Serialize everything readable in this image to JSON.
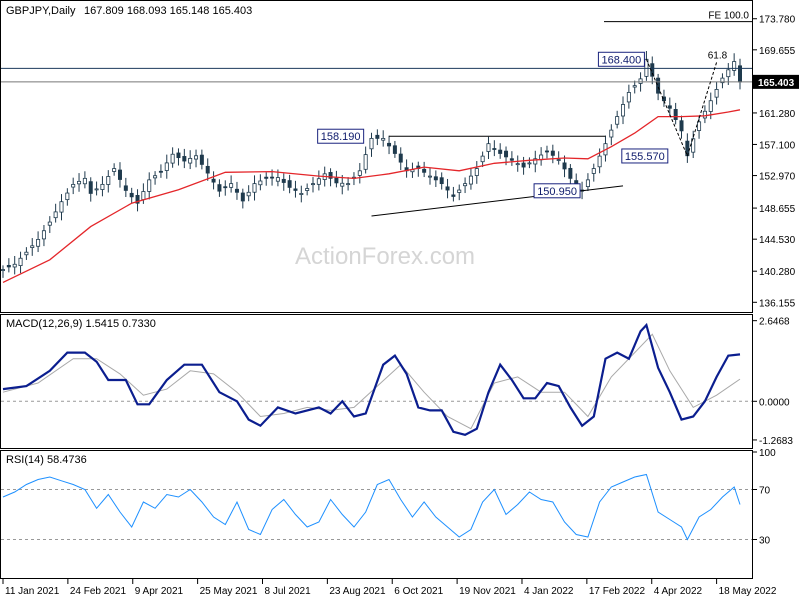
{
  "header": {
    "symbol_label": "GBPJPY,Daily",
    "ohlc_label": "167.809 168.093 165.148 165.403"
  },
  "watermark": "ActionForex.com",
  "colors": {
    "candle": "#1f3a4d",
    "ma": "#e4262a",
    "macd_main": "#0b1e8f",
    "macd_signal": "#a9a9a9",
    "rsi": "#1e90ff",
    "grid": "#000000",
    "label_border": "#1a237e"
  },
  "chart_data": [
    {
      "name": "price",
      "type": "line",
      "title": "GBPJPY,Daily",
      "ylim": [
        135.0,
        176.0
      ],
      "y_ticks": [
        {
          "value": 173.78,
          "label": "173.780"
        },
        {
          "value": 169.655,
          "label": "169.655"
        },
        {
          "value": 165.4,
          "label": "165.403"
        },
        {
          "value": 161.28,
          "label": "161.280"
        },
        {
          "value": 157.1,
          "label": "157.100"
        },
        {
          "value": 152.97,
          "label": "152.970"
        },
        {
          "value": 148.655,
          "label": "148.655"
        },
        {
          "value": 144.53,
          "label": "144.530"
        },
        {
          "value": 140.28,
          "label": "140.280"
        },
        {
          "value": 136.155,
          "label": "136.155"
        }
      ],
      "current_price": {
        "value": 165.403,
        "label": "165.403"
      },
      "x_labels": [
        "11 Jan 2021",
        "24 Feb 2021",
        "9 Apr 2021",
        "25 May 2021",
        "8 Jul 2021",
        "23 Aug 2021",
        "6 Oct 2021",
        "19 Nov 2021",
        "4 Jan 2022",
        "17 Feb 2022",
        "4 Apr 2022",
        "18 May 2022"
      ],
      "close_path": [
        [
          0,
          140.5
        ],
        [
          2,
          141.2
        ],
        [
          4,
          142.8
        ],
        [
          6,
          144.5
        ],
        [
          8,
          146.8
        ],
        [
          10,
          149.5
        ],
        [
          12,
          151.8
        ],
        [
          14,
          152.6
        ],
        [
          15,
          150.6
        ],
        [
          17,
          151.8
        ],
        [
          19,
          153.9
        ],
        [
          21,
          151.0
        ],
        [
          23,
          149.3
        ],
        [
          25,
          152.4
        ],
        [
          27,
          153.5
        ],
        [
          29,
          155.8
        ],
        [
          31,
          154.9
        ],
        [
          33,
          155.6
        ],
        [
          35,
          153.3
        ],
        [
          37,
          150.9
        ],
        [
          39,
          151.9
        ],
        [
          41,
          149.6
        ],
        [
          43,
          151.9
        ],
        [
          45,
          152.6
        ],
        [
          47,
          152.7
        ],
        [
          49,
          151.4
        ],
        [
          51,
          150.6
        ],
        [
          53,
          151.9
        ],
        [
          55,
          153.2
        ],
        [
          57,
          152.0
        ],
        [
          59,
          151.9
        ],
        [
          61,
          153.6
        ],
        [
          63,
          157.9
        ],
        [
          65,
          157.9
        ],
        [
          67,
          155.9
        ],
        [
          69,
          153.6
        ],
        [
          71,
          153.9
        ],
        [
          73,
          152.9
        ],
        [
          75,
          151.9
        ],
        [
          77,
          150.2
        ],
        [
          79,
          151.9
        ],
        [
          81,
          153.9
        ],
        [
          83,
          157.2
        ],
        [
          85,
          155.9
        ],
        [
          87,
          155.0
        ],
        [
          89,
          154.1
        ],
        [
          91,
          155.2
        ],
        [
          93,
          156.2
        ],
        [
          95,
          155.1
        ],
        [
          97,
          152.6
        ],
        [
          99,
          150.9
        ],
        [
          101,
          153.9
        ],
        [
          103,
          157.2
        ],
        [
          105,
          160.8
        ],
        [
          107,
          164.0
        ],
        [
          109,
          165.8
        ],
        [
          110,
          168.4
        ],
        [
          112,
          163.9
        ],
        [
          114,
          161.9
        ],
        [
          116,
          158.9
        ],
        [
          117,
          155.6
        ],
        [
          119,
          160.1
        ],
        [
          121,
          162.9
        ],
        [
          123,
          165.9
        ],
        [
          125,
          168.1
        ],
        [
          126,
          165.4
        ]
      ],
      "high_low_spread": 1.1,
      "ma_path": [
        [
          0,
          138.8
        ],
        [
          8,
          141.8
        ],
        [
          15,
          146.2
        ],
        [
          22,
          149.3
        ],
        [
          30,
          151.1
        ],
        [
          38,
          153.4
        ],
        [
          46,
          153.5
        ],
        [
          54,
          152.9
        ],
        [
          60,
          152.6
        ],
        [
          66,
          153.2
        ],
        [
          72,
          154.1
        ],
        [
          78,
          153.6
        ],
        [
          84,
          154.6
        ],
        [
          90,
          155.0
        ],
        [
          96,
          155.3
        ],
        [
          100,
          155.2
        ],
        [
          104,
          156.8
        ],
        [
          108,
          158.6
        ],
        [
          112,
          160.8
        ],
        [
          116,
          160.8
        ],
        [
          120,
          160.9
        ],
        [
          124,
          161.4
        ],
        [
          126,
          161.7
        ]
      ],
      "bars_total": 126,
      "horizontal_lines": [
        {
          "value": 173.4,
          "label": "FE 100.0"
        },
        {
          "value": 167.2,
          "label": ""
        },
        {
          "value": 165.4,
          "label": ""
        }
      ],
      "trendlines": [
        {
          "from": [
            66,
            158.19
          ],
          "to": [
            103,
            158.19
          ]
        },
        {
          "from": [
            63,
            147.6
          ],
          "to": [
            106,
            151.6
          ]
        },
        {
          "from": [
            110,
            168.4
          ],
          "to": [
            117,
            155.57
          ]
        },
        {
          "from": [
            117,
            155.57
          ],
          "to": [
            122,
            168.0
          ]
        }
      ],
      "price_labels": [
        {
          "text": "158.190",
          "x": 62,
          "y": 158.19,
          "anchor": "end"
        },
        {
          "text": "150.950",
          "x": 99,
          "y": 150.95,
          "anchor": "end"
        },
        {
          "text": "168.400",
          "x": 110,
          "y": 168.4,
          "anchor": "end"
        },
        {
          "text": "155.570",
          "x": 114,
          "y": 155.57,
          "anchor": "end"
        }
      ],
      "fib_label": {
        "text": "61.8",
        "x": 121,
        "y": 168.0
      }
    },
    {
      "name": "macd",
      "type": "line",
      "title": "MACD(12,26,9) 1.5415 0.7330",
      "ylim": [
        -1.5,
        2.8
      ],
      "y_ticks": [
        {
          "value": 2.6468,
          "label": "2.6468"
        },
        {
          "value": 0.0,
          "label": "0.0000"
        },
        {
          "value": -1.2683,
          "label": "-1.2683"
        }
      ],
      "main_path": [
        [
          0,
          0.4
        ],
        [
          4,
          0.5
        ],
        [
          8,
          1.0
        ],
        [
          11,
          1.6
        ],
        [
          14,
          1.6
        ],
        [
          16,
          1.3
        ],
        [
          18,
          0.7
        ],
        [
          21,
          0.7
        ],
        [
          23,
          -0.1
        ],
        [
          25,
          -0.1
        ],
        [
          28,
          0.7
        ],
        [
          31,
          1.2
        ],
        [
          34,
          1.2
        ],
        [
          37,
          0.3
        ],
        [
          40,
          0.0
        ],
        [
          42,
          -0.6
        ],
        [
          44,
          -0.8
        ],
        [
          47,
          -0.2
        ],
        [
          50,
          -0.4
        ],
        [
          54,
          -0.2
        ],
        [
          56,
          -0.4
        ],
        [
          58,
          0.0
        ],
        [
          60,
          -0.5
        ],
        [
          62,
          -0.4
        ],
        [
          65,
          1.2
        ],
        [
          67,
          1.5
        ],
        [
          69,
          0.9
        ],
        [
          71,
          -0.2
        ],
        [
          73,
          -0.3
        ],
        [
          75,
          -0.3
        ],
        [
          77,
          -1.0
        ],
        [
          79,
          -1.1
        ],
        [
          81,
          -0.9
        ],
        [
          83,
          0.3
        ],
        [
          85,
          1.2
        ],
        [
          87,
          0.7
        ],
        [
          89,
          0.1
        ],
        [
          91,
          0.1
        ],
        [
          93,
          0.6
        ],
        [
          95,
          0.5
        ],
        [
          97,
          -0.2
        ],
        [
          99,
          -0.8
        ],
        [
          101,
          -0.5
        ],
        [
          103,
          1.4
        ],
        [
          105,
          1.6
        ],
        [
          107,
          1.4
        ],
        [
          109,
          2.3
        ],
        [
          110,
          2.5
        ],
        [
          112,
          1.1
        ],
        [
          114,
          0.3
        ],
        [
          116,
          -0.6
        ],
        [
          118,
          -0.5
        ],
        [
          120,
          0.0
        ],
        [
          122,
          0.8
        ],
        [
          124,
          1.5
        ],
        [
          126,
          1.54
        ]
      ],
      "signal_path": [
        [
          0,
          0.3
        ],
        [
          6,
          0.6
        ],
        [
          12,
          1.4
        ],
        [
          16,
          1.4
        ],
        [
          20,
          0.9
        ],
        [
          24,
          0.2
        ],
        [
          28,
          0.4
        ],
        [
          32,
          1.0
        ],
        [
          36,
          0.9
        ],
        [
          40,
          0.3
        ],
        [
          44,
          -0.5
        ],
        [
          48,
          -0.4
        ],
        [
          52,
          -0.2
        ],
        [
          56,
          -0.3
        ],
        [
          60,
          -0.2
        ],
        [
          64,
          0.5
        ],
        [
          68,
          1.2
        ],
        [
          72,
          0.3
        ],
        [
          76,
          -0.5
        ],
        [
          80,
          -0.9
        ],
        [
          84,
          0.6
        ],
        [
          88,
          0.8
        ],
        [
          92,
          0.3
        ],
        [
          96,
          0.3
        ],
        [
          100,
          -0.5
        ],
        [
          104,
          0.8
        ],
        [
          108,
          1.6
        ],
        [
          111,
          2.2
        ],
        [
          114,
          1.0
        ],
        [
          118,
          -0.2
        ],
        [
          122,
          0.2
        ],
        [
          126,
          0.73
        ]
      ]
    },
    {
      "name": "rsi",
      "type": "line",
      "title": "RSI(14) 58.4736",
      "ylim": [
        0,
        100
      ],
      "y_ticks": [
        {
          "value": 100,
          "label": "100"
        },
        {
          "value": 70,
          "label": "70"
        },
        {
          "value": 30,
          "label": "30"
        }
      ],
      "levels": [
        70,
        30
      ],
      "path": [
        [
          0,
          64
        ],
        [
          2,
          68
        ],
        [
          4,
          74
        ],
        [
          6,
          78
        ],
        [
          8,
          80
        ],
        [
          10,
          77
        ],
        [
          12,
          74
        ],
        [
          14,
          70
        ],
        [
          16,
          55
        ],
        [
          18,
          66
        ],
        [
          20,
          52
        ],
        [
          22,
          40
        ],
        [
          24,
          60
        ],
        [
          26,
          55
        ],
        [
          28,
          66
        ],
        [
          30,
          64
        ],
        [
          32,
          70
        ],
        [
          34,
          60
        ],
        [
          36,
          48
        ],
        [
          38,
          42
        ],
        [
          40,
          60
        ],
        [
          42,
          38
        ],
        [
          44,
          34
        ],
        [
          46,
          54
        ],
        [
          48,
          62
        ],
        [
          50,
          50
        ],
        [
          52,
          40
        ],
        [
          54,
          44
        ],
        [
          56,
          62
        ],
        [
          58,
          50
        ],
        [
          60,
          40
        ],
        [
          62,
          52
        ],
        [
          64,
          74
        ],
        [
          66,
          78
        ],
        [
          68,
          62
        ],
        [
          70,
          48
        ],
        [
          72,
          60
        ],
        [
          74,
          48
        ],
        [
          76,
          40
        ],
        [
          78,
          32
        ],
        [
          80,
          38
        ],
        [
          82,
          60
        ],
        [
          84,
          70
        ],
        [
          86,
          50
        ],
        [
          88,
          58
        ],
        [
          90,
          68
        ],
        [
          92,
          62
        ],
        [
          94,
          60
        ],
        [
          96,
          44
        ],
        [
          98,
          34
        ],
        [
          100,
          32
        ],
        [
          102,
          60
        ],
        [
          104,
          72
        ],
        [
          106,
          76
        ],
        [
          108,
          80
        ],
        [
          110,
          82
        ],
        [
          112,
          52
        ],
        [
          114,
          46
        ],
        [
          116,
          40
        ],
        [
          117,
          30
        ],
        [
          119,
          48
        ],
        [
          121,
          54
        ],
        [
          123,
          64
        ],
        [
          125,
          72
        ],
        [
          126,
          58
        ]
      ]
    }
  ]
}
